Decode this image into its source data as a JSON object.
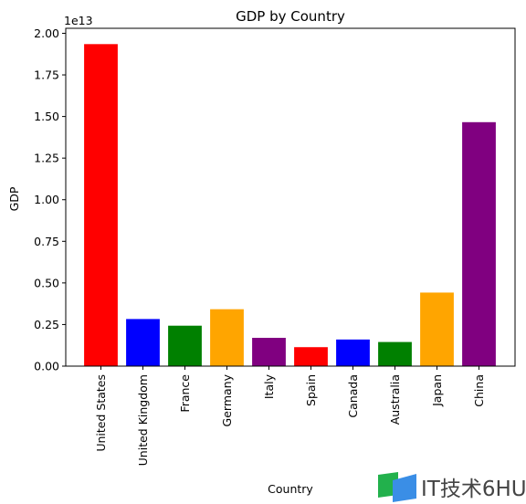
{
  "chart_data": {
    "type": "bar",
    "title": "GDP by Country",
    "xlabel": "Country",
    "ylabel": "GDP",
    "offset_label": "1e13",
    "categories": [
      "United States",
      "United Kingdom",
      "France",
      "Germany",
      "Italy",
      "Spain",
      "Canada",
      "Australia",
      "Japan",
      "China"
    ],
    "values": [
      19350000000000.0,
      2830000000000.0,
      2430000000000.0,
      3420000000000.0,
      1700000000000.0,
      1140000000000.0,
      1600000000000.0,
      1450000000000.0,
      4420000000000.0,
      14660000000000.0
    ],
    "colors": [
      "#ff0000",
      "#0000ff",
      "#008000",
      "#ffa500",
      "#800080",
      "#ff0000",
      "#0000ff",
      "#008000",
      "#ffa500",
      "#800080"
    ],
    "yticks": [
      "0.00",
      "0.25",
      "0.50",
      "0.75",
      "1.00",
      "1.25",
      "1.50",
      "1.75",
      "2.00"
    ],
    "ytick_values": [
      0,
      2500000000000.0,
      5000000000000.0,
      7500000000000.0,
      10000000000000.0,
      12500000000000.0,
      15000000000000.0,
      17500000000000.0,
      20000000000000.0
    ],
    "ylim": [
      0,
      20300000000000.0
    ],
    "grid": false,
    "legend": "none"
  },
  "watermark": {
    "text": "IT技术6HU",
    "colors": [
      "#22b14c",
      "#3a8ee6"
    ]
  }
}
